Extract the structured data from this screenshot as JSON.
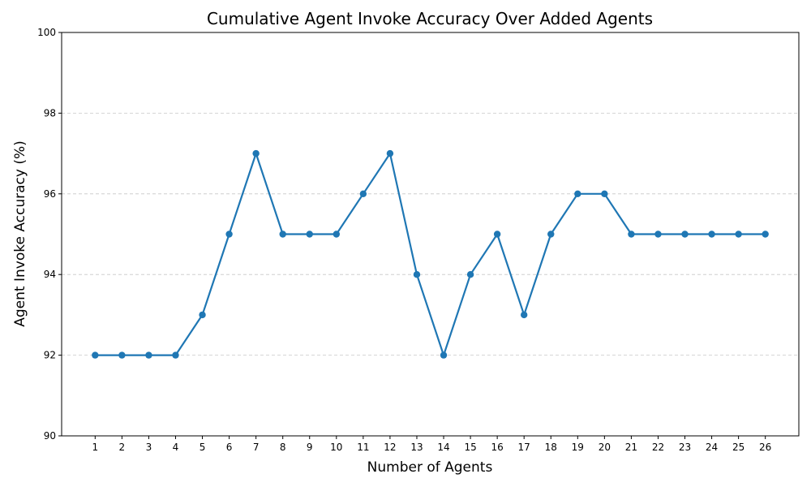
{
  "chart_data": {
    "type": "line",
    "title": "Cumulative Agent Invoke Accuracy Over Added Agents",
    "xlabel": "Number of Agents",
    "ylabel": "Agent Invoke Accuracy (%)",
    "x": [
      1,
      2,
      3,
      4,
      5,
      6,
      7,
      8,
      9,
      10,
      11,
      12,
      13,
      14,
      15,
      16,
      17,
      18,
      19,
      20,
      21,
      22,
      23,
      24,
      25,
      26
    ],
    "series": [
      {
        "values": [
          92,
          92,
          92,
          92,
          93,
          95,
          97,
          95,
          95,
          95,
          96,
          97,
          94,
          92,
          94,
          95,
          93,
          95,
          96,
          96,
          95,
          95,
          95,
          95,
          95,
          95
        ],
        "color": "#1f77b4",
        "marker": "circle"
      }
    ],
    "xlim": [
      -0.25,
      27.25
    ],
    "ylim": [
      90,
      100
    ],
    "yticks": [
      90,
      92,
      94,
      96,
      98,
      100
    ],
    "grid": "y-dashed",
    "legend": "none"
  }
}
